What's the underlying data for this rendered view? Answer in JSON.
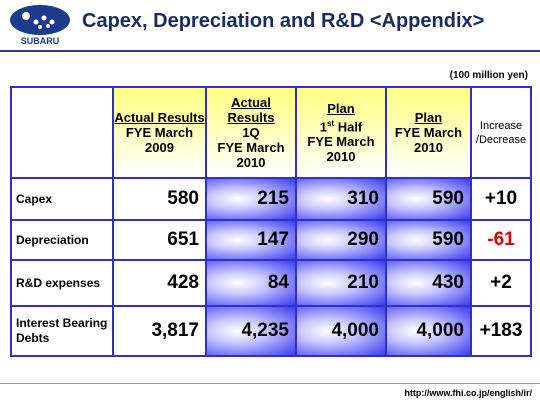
{
  "header": {
    "logo_text": "SUBARU",
    "title": "Capex, Depreciation and R&D <Appendix>"
  },
  "table": {
    "unit": "(100 million yen)",
    "columns": [
      {
        "title": "Actual Results",
        "lines": [
          "FYE March",
          "2009"
        ]
      },
      {
        "title": "Actual Results",
        "lines": [
          "1Q",
          "FYE March",
          "2010"
        ]
      },
      {
        "title": "Plan",
        "ordinal": "1",
        "ordinal_suffix": "st",
        "lines": [
          "Half",
          "FYE March",
          "2010"
        ]
      },
      {
        "title": "Plan",
        "lines": [
          "FYE March",
          "2010"
        ]
      },
      {
        "lines": [
          "Increase",
          "/Decrease"
        ]
      }
    ],
    "rows": [
      {
        "label": "Capex",
        "values": [
          "580",
          "215",
          "310",
          "590",
          "+10"
        ]
      },
      {
        "label": "Depreciation",
        "values": [
          "651",
          "147",
          "290",
          "590",
          "-61"
        ]
      },
      {
        "label": "R&D expenses",
        "values": [
          "428",
          "84",
          "210",
          "430",
          "+2"
        ]
      },
      {
        "label": "Interest Bearing Debts",
        "values": [
          "3,817",
          "4,235",
          "4,000",
          "4,000",
          "+183"
        ]
      }
    ]
  },
  "footer": {
    "url": "http://www.fhi.co.jp/english/ir/"
  }
}
